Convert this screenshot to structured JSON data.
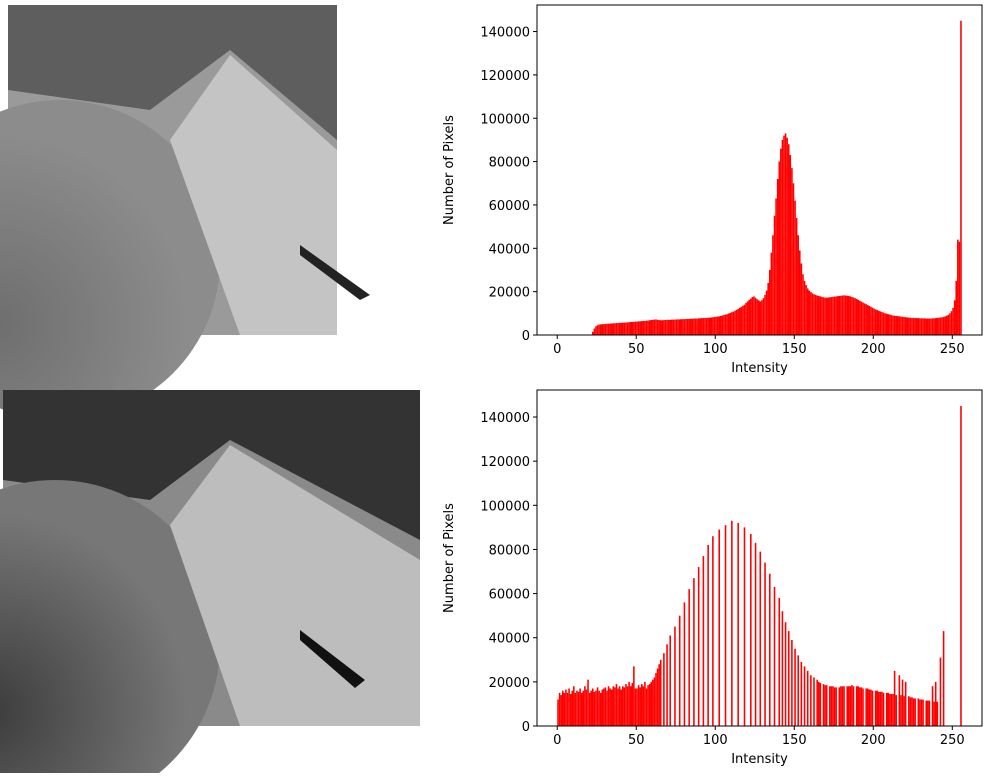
{
  "chart_data": [
    {
      "type": "histogram",
      "color": "#ff0000",
      "xlabel": "Intensity",
      "ylabel": "Number of Pixels",
      "xlim": [
        -12.8,
        268.8
      ],
      "ylim": [
        0,
        152250
      ],
      "xticks": [
        0,
        50,
        100,
        150,
        200,
        250
      ],
      "yticks": [
        0,
        20000,
        40000,
        60000,
        80000,
        100000,
        120000,
        140000
      ],
      "bins": [
        0,
        1,
        2,
        3,
        4,
        5,
        6,
        7,
        8,
        9,
        10,
        11,
        12,
        13,
        14,
        15,
        16,
        17,
        18,
        19,
        20,
        21,
        22,
        23,
        24,
        25,
        26,
        27,
        28,
        29,
        30,
        31,
        32,
        33,
        34,
        35,
        36,
        37,
        38,
        39,
        40,
        41,
        42,
        43,
        44,
        45,
        46,
        47,
        48,
        49,
        50,
        51,
        52,
        53,
        54,
        55,
        56,
        57,
        58,
        59,
        60,
        61,
        62,
        63,
        64,
        65,
        66,
        67,
        68,
        69,
        70,
        71,
        72,
        73,
        74,
        75,
        76,
        77,
        78,
        79,
        80,
        81,
        82,
        83,
        84,
        85,
        86,
        87,
        88,
        89,
        90,
        91,
        92,
        93,
        94,
        95,
        96,
        97,
        98,
        99,
        100,
        101,
        102,
        103,
        104,
        105,
        106,
        107,
        108,
        109,
        110,
        111,
        112,
        113,
        114,
        115,
        116,
        117,
        118,
        119,
        120,
        121,
        122,
        123,
        124,
        125,
        126,
        127,
        128,
        129,
        130,
        131,
        132,
        133,
        134,
        135,
        136,
        137,
        138,
        139,
        140,
        141,
        142,
        143,
        144,
        145,
        146,
        147,
        148,
        149,
        150,
        151,
        152,
        153,
        154,
        155,
        156,
        157,
        158,
        159,
        160,
        161,
        162,
        163,
        164,
        165,
        166,
        167,
        168,
        169,
        170,
        171,
        172,
        173,
        174,
        175,
        176,
        177,
        178,
        179,
        180,
        181,
        182,
        183,
        184,
        185,
        186,
        187,
        188,
        189,
        190,
        191,
        192,
        193,
        194,
        195,
        196,
        197,
        198,
        199,
        200,
        201,
        202,
        203,
        204,
        205,
        206,
        207,
        208,
        209,
        210,
        211,
        212,
        213,
        214,
        215,
        216,
        217,
        218,
        219,
        220,
        221,
        222,
        223,
        224,
        225,
        226,
        227,
        228,
        229,
        230,
        231,
        232,
        233,
        234,
        235,
        236,
        237,
        238,
        239,
        240,
        241,
        242,
        243,
        244,
        245,
        246,
        247,
        248,
        249,
        250,
        251,
        252,
        253,
        254,
        255,
        256
      ],
      "values": [
        0,
        0,
        0,
        0,
        0,
        0,
        0,
        0,
        0,
        0,
        0,
        0,
        0,
        0,
        0,
        0,
        0,
        0,
        0,
        0,
        0,
        0,
        1500,
        3000,
        4000,
        4500,
        4800,
        4900,
        5000,
        5000,
        5100,
        5200,
        5200,
        5300,
        5300,
        5400,
        5400,
        5500,
        5500,
        5600,
        5600,
        5700,
        5700,
        5800,
        5800,
        5900,
        6000,
        6000,
        6100,
        6200,
        6200,
        6300,
        6300,
        6400,
        6500,
        6500,
        6600,
        6700,
        6800,
        6900,
        7000,
        7100,
        7200,
        7000,
        6900,
        6800,
        6800,
        6900,
        6900,
        7000,
        7000,
        7000,
        7100,
        7100,
        7100,
        7200,
        7200,
        7200,
        7300,
        7300,
        7300,
        7400,
        7400,
        7400,
        7500,
        7500,
        7600,
        7600,
        7600,
        7700,
        7700,
        7800,
        7800,
        7900,
        7900,
        8000,
        8000,
        8100,
        8200,
        8300,
        8400,
        8500,
        8600,
        8800,
        9000,
        9200,
        9400,
        9600,
        9900,
        10200,
        10500,
        10800,
        11200,
        11600,
        12000,
        12500,
        13000,
        13500,
        14000,
        14800,
        15500,
        16200,
        16800,
        17500,
        17800,
        17200,
        16500,
        16000,
        15500,
        16000,
        17000,
        18500,
        20500,
        24000,
        30000,
        38000,
        46000,
        55000,
        63000,
        72000,
        80000,
        86000,
        90000,
        92000,
        93000,
        91000,
        88000,
        83000,
        77000,
        70000,
        62000,
        54000,
        46000,
        39000,
        33000,
        28000,
        25000,
        23000,
        21500,
        20500,
        19800,
        19200,
        18800,
        18500,
        18200,
        18000,
        17800,
        17600,
        17400,
        17300,
        17200,
        17300,
        17400,
        17500,
        17600,
        17700,
        17800,
        17900,
        18000,
        18100,
        18200,
        18300,
        18200,
        18100,
        18000,
        17800,
        17600,
        17300,
        17000,
        16600,
        16200,
        15800,
        15400,
        15000,
        14600,
        14200,
        13800,
        13400,
        13000,
        12600,
        12200,
        11800,
        11500,
        11200,
        10900,
        10600,
        10300,
        10000,
        9800,
        9600,
        9400,
        9200,
        9000,
        8900,
        8800,
        8700,
        8600,
        8500,
        8400,
        8300,
        8200,
        8100,
        8000,
        8000,
        7900,
        7900,
        7800,
        7800,
        7800,
        7700,
        7700,
        7700,
        7700,
        7600,
        7600,
        7600,
        7600,
        7700,
        7700,
        7800,
        7900,
        8000,
        8100,
        8200,
        8400,
        8600,
        8900,
        9300,
        10000,
        11000,
        12500,
        16000,
        25000,
        44000,
        43000,
        145000
      ]
    },
    {
      "type": "histogram",
      "color": "#ff0000",
      "xlabel": "Intensity",
      "ylabel": "Number of Pixels",
      "xlim": [
        -12.8,
        268.8
      ],
      "ylim": [
        0,
        152250
      ],
      "xticks": [
        0,
        50,
        100,
        150,
        200,
        250
      ],
      "yticks": [
        0,
        20000,
        40000,
        60000,
        80000,
        100000,
        120000,
        140000
      ],
      "bins": [
        0,
        1,
        2,
        3,
        4,
        5,
        6,
        7,
        8,
        9,
        10,
        11,
        12,
        13,
        14,
        15,
        16,
        17,
        18,
        19,
        20,
        21,
        22,
        23,
        24,
        25,
        26,
        27,
        28,
        29,
        30,
        31,
        32,
        33,
        34,
        35,
        36,
        37,
        38,
        39,
        40,
        41,
        42,
        43,
        44,
        45,
        46,
        47,
        48,
        49,
        50,
        51,
        52,
        53,
        54,
        55,
        56,
        57,
        58,
        59,
        60,
        61,
        62,
        63,
        64,
        65,
        66,
        67,
        68,
        69,
        70,
        71,
        72,
        73,
        74,
        75,
        76,
        77,
        78,
        79,
        80,
        81,
        82,
        83,
        84,
        85,
        86,
        87,
        88,
        89,
        90,
        91,
        92,
        93,
        94,
        95,
        96,
        97,
        98,
        99,
        100,
        101,
        102,
        103,
        104,
        105,
        106,
        107,
        108,
        109,
        110,
        111,
        112,
        113,
        114,
        115,
        116,
        117,
        118,
        119,
        120,
        121,
        122,
        123,
        124,
        125,
        126,
        127,
        128,
        129,
        130,
        131,
        132,
        133,
        134,
        135,
        136,
        137,
        138,
        139,
        140,
        141,
        142,
        143,
        144,
        145,
        146,
        147,
        148,
        149,
        150,
        151,
        152,
        153,
        154,
        155,
        156,
        157,
        158,
        159,
        160,
        161,
        162,
        163,
        164,
        165,
        166,
        167,
        168,
        169,
        170,
        171,
        172,
        173,
        174,
        175,
        176,
        177,
        178,
        179,
        180,
        181,
        182,
        183,
        184,
        185,
        186,
        187,
        188,
        189,
        190,
        191,
        192,
        193,
        194,
        195,
        196,
        197,
        198,
        199,
        200,
        201,
        202,
        203,
        204,
        205,
        206,
        207,
        208,
        209,
        210,
        211,
        212,
        213,
        214,
        215,
        216,
        217,
        218,
        219,
        220,
        221,
        222,
        223,
        224,
        225,
        226,
        227,
        228,
        229,
        230,
        231,
        232,
        233,
        234,
        235,
        236,
        237,
        238,
        239,
        240,
        241,
        242,
        243,
        244,
        245,
        246,
        247,
        248,
        249,
        250,
        251,
        252,
        253,
        254,
        255,
        256
      ],
      "values": [
        12000,
        15000,
        14000,
        16000,
        15000,
        16500,
        15000,
        17000,
        14500,
        16000,
        18000,
        15000,
        16000,
        15500,
        17000,
        15000,
        16000,
        18000,
        16500,
        21000,
        15000,
        16000,
        17000,
        15500,
        16000,
        17500,
        16000,
        15000,
        16500,
        17000,
        17500,
        16000,
        18000,
        17000,
        16500,
        18000,
        17500,
        19000,
        17000,
        18000,
        16500,
        18000,
        17500,
        19000,
        18000,
        20000,
        18000,
        19500,
        27000,
        17000,
        17000,
        18500,
        17500,
        19000,
        18000,
        20000,
        17000,
        18500,
        19000,
        20000,
        21000,
        22000,
        24000,
        26000,
        28000,
        30000,
        0,
        33000,
        0,
        37000,
        0,
        41000,
        0,
        0,
        45000,
        0,
        0,
        50000,
        0,
        0,
        56000,
        0,
        0,
        62000,
        0,
        0,
        67000,
        0,
        0,
        72000,
        0,
        0,
        77000,
        0,
        0,
        82000,
        0,
        0,
        86000,
        0,
        0,
        0,
        89000,
        0,
        0,
        0,
        91000,
        0,
        0,
        0,
        93000,
        0,
        0,
        0,
        92000,
        0,
        0,
        0,
        90000,
        0,
        0,
        0,
        87000,
        0,
        0,
        83000,
        0,
        0,
        79000,
        0,
        0,
        74000,
        0,
        0,
        69000,
        0,
        0,
        63000,
        0,
        0,
        58000,
        0,
        52000,
        0,
        47000,
        0,
        43000,
        0,
        39000,
        0,
        35000,
        0,
        32000,
        0,
        29000,
        0,
        27000,
        0,
        25000,
        0,
        23000,
        0,
        22000,
        0,
        21000,
        20000,
        19500,
        0,
        19000,
        18500,
        18500,
        0,
        18000,
        18000,
        18000,
        17500,
        17500,
        0,
        17500,
        18000,
        18000,
        18000,
        0,
        18000,
        18000,
        18000,
        18500,
        18000,
        0,
        18000,
        18000,
        17500,
        17500,
        17000,
        0,
        17000,
        17000,
        16500,
        16500,
        16000,
        0,
        16000,
        16000,
        15500,
        15500,
        15500,
        15000,
        0,
        15000,
        15000,
        14500,
        14500,
        14500,
        25000,
        14000,
        0,
        23000,
        14000,
        21000,
        13500,
        20000,
        0,
        13500,
        13000,
        13000,
        12500,
        12500,
        0,
        12500,
        12000,
        12000,
        12000,
        0,
        11500,
        11500,
        11500,
        0,
        18000,
        11000,
        20000,
        11000,
        0,
        31000,
        0,
        43000,
        0,
        0,
        0,
        0,
        0,
        0,
        0,
        0,
        0,
        0,
        145000
      ]
    }
  ]
}
